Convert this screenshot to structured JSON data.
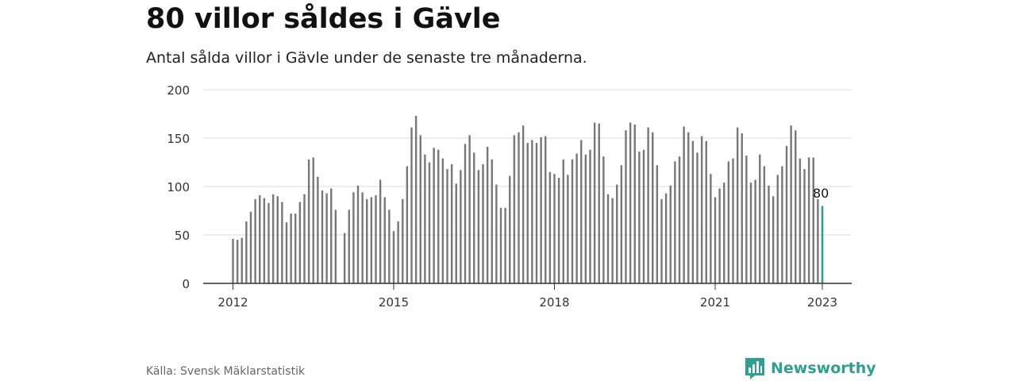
{
  "title": "80 villor såldes i Gävle",
  "subtitle": "Antal sålda villor i Gävle under de senaste tre månaderna.",
  "source": "Källa: Svensk Mäklarstatistik",
  "brand": {
    "name": "Newsworthy",
    "icon": "newsworthy-logo-icon",
    "color": "#2f9e93"
  },
  "chart_data": {
    "type": "bar",
    "title": "80 villor såldes i Gävle",
    "subtitle": "Antal sålda villor i Gävle under de senaste tre månaderna.",
    "xlabel": "",
    "ylabel": "",
    "ylim": [
      0,
      200
    ],
    "yticks": [
      "0",
      "50",
      "100",
      "150",
      "200"
    ],
    "xticks": [
      "2012",
      "2015",
      "2018",
      "2021",
      "2023"
    ],
    "grid": true,
    "legend": "none",
    "x": [
      "2012-01",
      "2012-02",
      "2012-03",
      "2012-04",
      "2012-05",
      "2012-06",
      "2012-07",
      "2012-08",
      "2012-09",
      "2012-10",
      "2012-11",
      "2012-12",
      "2013-01",
      "2013-02",
      "2013-03",
      "2013-04",
      "2013-05",
      "2013-06",
      "2013-07",
      "2013-08",
      "2013-09",
      "2013-10",
      "2013-11",
      "2013-12",
      "2014-01",
      "2014-02",
      "2014-03",
      "2014-04",
      "2014-05",
      "2014-06",
      "2014-07",
      "2014-08",
      "2014-09",
      "2014-10",
      "2014-11",
      "2014-12",
      "2015-01",
      "2015-02",
      "2015-03",
      "2015-04",
      "2015-05",
      "2015-06",
      "2015-07",
      "2015-08",
      "2015-09",
      "2015-10",
      "2015-11",
      "2015-12",
      "2016-01",
      "2016-02",
      "2016-03",
      "2016-04",
      "2016-05",
      "2016-06",
      "2016-07",
      "2016-08",
      "2016-09",
      "2016-10",
      "2016-11",
      "2016-12",
      "2017-01",
      "2017-02",
      "2017-03",
      "2017-04",
      "2017-05",
      "2017-06",
      "2017-07",
      "2017-08",
      "2017-09",
      "2017-10",
      "2017-11",
      "2017-12",
      "2018-01",
      "2018-02",
      "2018-03",
      "2018-04",
      "2018-05",
      "2018-06",
      "2018-07",
      "2018-08",
      "2018-09",
      "2018-10",
      "2018-11",
      "2018-12",
      "2019-01",
      "2019-02",
      "2019-03",
      "2019-04",
      "2019-05",
      "2019-06",
      "2019-07",
      "2019-08",
      "2019-09",
      "2019-10",
      "2019-11",
      "2019-12",
      "2020-01",
      "2020-02",
      "2020-03",
      "2020-04",
      "2020-05",
      "2020-06",
      "2020-07",
      "2020-08",
      "2020-09",
      "2020-10",
      "2020-11",
      "2020-12",
      "2021-01",
      "2021-02",
      "2021-03",
      "2021-04",
      "2021-05",
      "2021-06",
      "2021-07",
      "2021-08",
      "2021-09",
      "2021-10",
      "2021-11",
      "2021-12",
      "2022-01",
      "2022-02",
      "2022-03",
      "2022-04",
      "2022-05",
      "2022-06",
      "2022-07",
      "2022-08",
      "2022-09",
      "2022-10",
      "2022-11",
      "2022-12",
      "2023-01"
    ],
    "values": [
      46,
      45,
      47,
      64,
      74,
      87,
      91,
      88,
      83,
      92,
      90,
      84,
      63,
      72,
      72,
      84,
      92,
      128,
      130,
      110,
      96,
      93,
      98,
      76,
      null,
      52,
      76,
      94,
      101,
      94,
      87,
      89,
      91,
      107,
      89,
      76,
      54,
      64,
      87,
      121,
      161,
      173,
      153,
      133,
      125,
      140,
      138,
      129,
      118,
      123,
      103,
      117,
      144,
      153,
      135,
      117,
      123,
      141,
      128,
      102,
      78,
      78,
      111,
      153,
      156,
      163,
      145,
      148,
      145,
      151,
      152,
      115,
      113,
      109,
      128,
      112,
      128,
      134,
      148,
      133,
      138,
      166,
      165,
      131,
      92,
      88,
      102,
      122,
      158,
      166,
      164,
      136,
      138,
      161,
      156,
      122,
      87,
      93,
      101,
      126,
      131,
      162,
      156,
      147,
      135,
      152,
      147,
      113,
      89,
      98,
      104,
      126,
      129,
      161,
      155,
      132,
      104,
      107,
      133,
      121,
      101,
      90,
      112,
      121,
      142,
      163,
      158,
      129,
      118,
      130,
      130,
      87,
      80
    ],
    "series_colors": [
      "#777777",
      "#2f9e93"
    ],
    "highlight": {
      "x": "2023-01",
      "value": 80,
      "label": "80"
    }
  }
}
